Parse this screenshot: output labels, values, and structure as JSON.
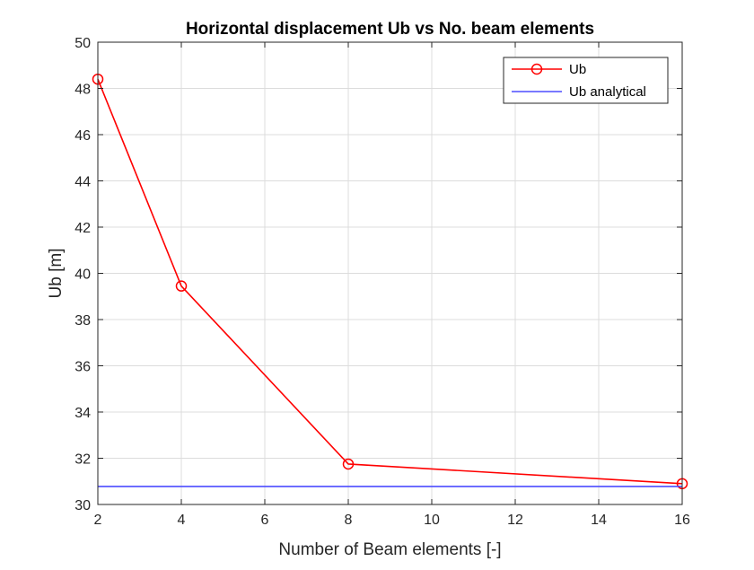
{
  "chart_data": {
    "type": "line",
    "title": "Horizontal displacement Ub vs No. beam elements",
    "xlabel": "Number of Beam elements [-]",
    "ylabel": "Ub [m]",
    "xlim": [
      2,
      16
    ],
    "ylim": [
      30,
      50
    ],
    "xticks": [
      "2",
      "4",
      "6",
      "8",
      "10",
      "12",
      "14",
      "16"
    ],
    "yticks": [
      "30",
      "32",
      "34",
      "36",
      "38",
      "40",
      "42",
      "44",
      "46",
      "48",
      "50"
    ],
    "grid": true,
    "legend_position": "top-right",
    "series": [
      {
        "name": "Ub",
        "color": "#ff0000",
        "marker": "circle",
        "x": [
          2,
          4,
          8,
          16
        ],
        "y": [
          48.4,
          39.45,
          31.75,
          30.9
        ]
      },
      {
        "name": "Ub analytical",
        "color": "#4d4dff",
        "marker": "none",
        "x": [
          2,
          16
        ],
        "y": [
          30.78,
          30.78
        ]
      }
    ]
  }
}
